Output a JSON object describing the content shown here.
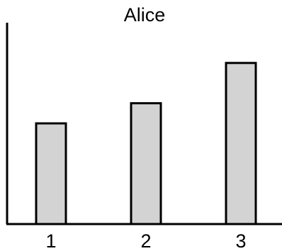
{
  "chart_data": {
    "type": "bar",
    "title": "Alice",
    "categories": [
      "1",
      "2",
      "3"
    ],
    "values": [
      2.5,
      3.0,
      4.0
    ],
    "xlabel": "",
    "ylabel": "",
    "ylim": [
      0,
      5
    ],
    "grid": false,
    "colors": {
      "bar_fill": "#d3d3d3",
      "bar_stroke": "#000000",
      "axis": "#000000"
    }
  }
}
